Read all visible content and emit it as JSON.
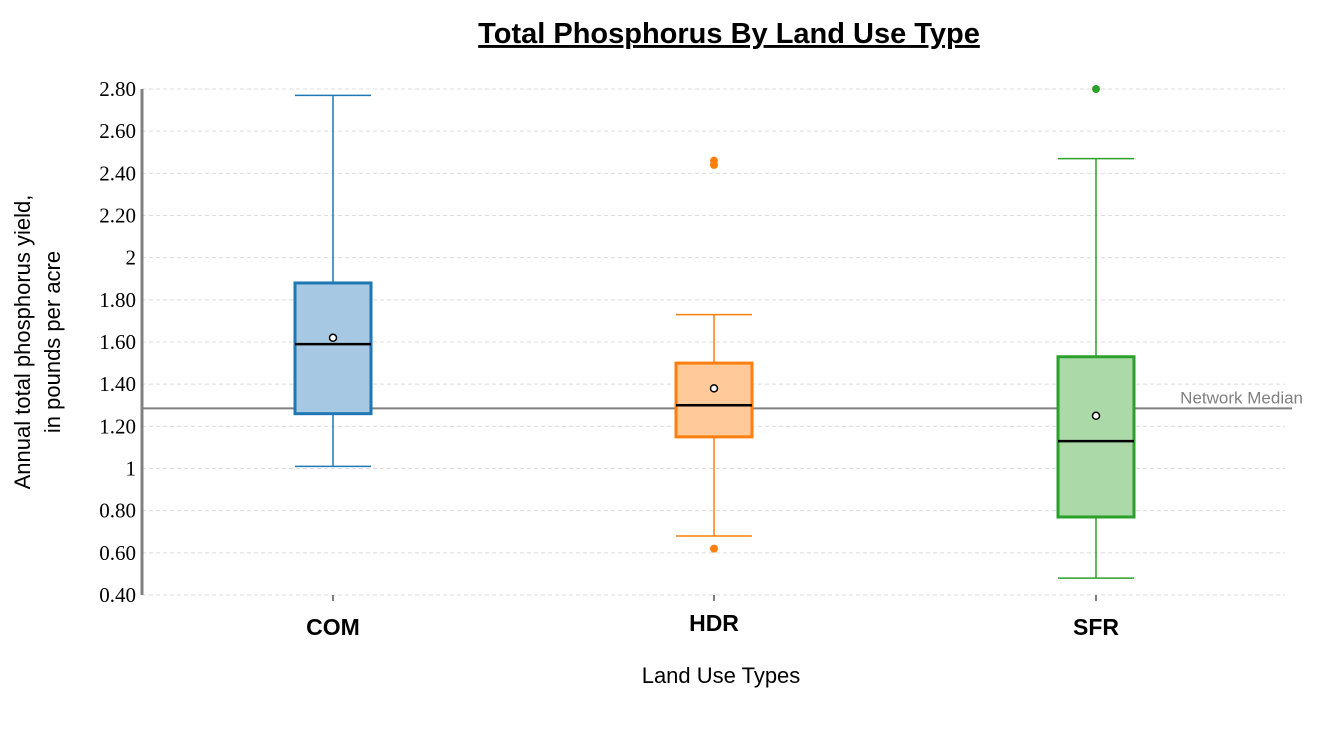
{
  "chart_data": {
    "type": "boxplot",
    "title": "Total Phosphorus By Land Use Type",
    "xlabel": "Land Use Types",
    "ylabel": [
      "Annual total phosphorus yield,",
      "in pounds per acre"
    ],
    "ylim": [
      0.4,
      2.8
    ],
    "yticks": [
      0.4,
      0.6,
      0.8,
      1.0,
      1.2,
      1.4,
      1.6,
      1.8,
      2.0,
      2.2,
      2.4,
      2.6,
      2.8
    ],
    "ytick_labels": [
      "0.40",
      "0.60",
      "0.80",
      "1",
      "1.20",
      "1.40",
      "1.60",
      "1.80",
      "2",
      "2.20",
      "2.40",
      "2.60",
      "2.80"
    ],
    "grid": true,
    "categories": [
      "COM",
      "HDR",
      "SFR"
    ],
    "boxes": [
      {
        "category": "COM",
        "color": "#1f77b4",
        "fill": "#a6c8e2",
        "whisker_low": 1.01,
        "q1": 1.26,
        "median": 1.59,
        "q3": 1.88,
        "whisker_high": 2.77,
        "mean": 1.62,
        "outliers": []
      },
      {
        "category": "HDR",
        "color": "#ff7f0e",
        "fill": "#ffc999",
        "whisker_low": 0.68,
        "q1": 1.15,
        "median": 1.3,
        "q3": 1.5,
        "whisker_high": 1.73,
        "mean": 1.38,
        "outliers": [
          0.62,
          2.44,
          2.46
        ]
      },
      {
        "category": "SFR",
        "color": "#2ca02c",
        "fill": "#abd9a8",
        "whisker_low": 0.48,
        "q1": 0.77,
        "median": 1.13,
        "q3": 1.53,
        "whisker_high": 2.47,
        "mean": 1.25,
        "outliers": [
          2.8
        ]
      }
    ],
    "reference_line": {
      "label": "Network Median",
      "value": 1.285,
      "color": "#808080"
    }
  }
}
